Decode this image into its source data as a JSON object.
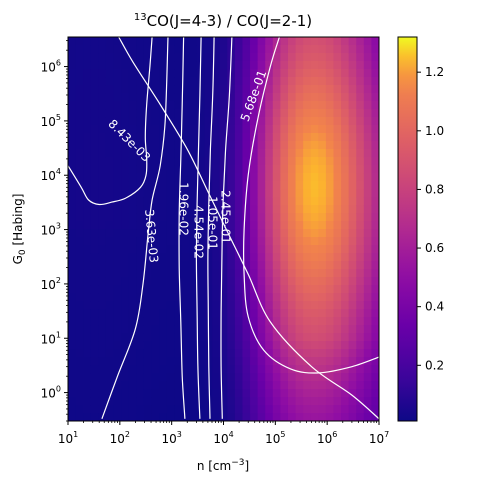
{
  "chart_data": {
    "type": "heatmap",
    "title_prefix": "13",
    "title_main": "CO(J=4-3) / CO(J=2-1)",
    "xlabel": "n [cm",
    "xlabel_sup": "−3",
    "xlabel_end": "]",
    "ylabel_main": "G",
    "ylabel_sub": "0",
    "ylabel_end": " [Habing]",
    "x_scale": "log",
    "y_scale": "log",
    "xlim": [
      10,
      10000000
    ],
    "ylim": [
      0.3,
      3500000
    ],
    "x_ticks": [
      {
        "value": 10,
        "base": "10",
        "exp": "1"
      },
      {
        "value": 100,
        "base": "10",
        "exp": "2"
      },
      {
        "value": 1000,
        "base": "10",
        "exp": "3"
      },
      {
        "value": 10000,
        "base": "10",
        "exp": "4"
      },
      {
        "value": 100000,
        "base": "10",
        "exp": "5"
      },
      {
        "value": 1000000,
        "base": "10",
        "exp": "6"
      },
      {
        "value": 10000000,
        "base": "10",
        "exp": "7"
      }
    ],
    "y_ticks": [
      {
        "value": 1,
        "base": "10",
        "exp": "0"
      },
      {
        "value": 10,
        "base": "10",
        "exp": "1"
      },
      {
        "value": 100,
        "base": "10",
        "exp": "2"
      },
      {
        "value": 1000,
        "base": "10",
        "exp": "3"
      },
      {
        "value": 10000,
        "base": "10",
        "exp": "4"
      },
      {
        "value": 100000,
        "base": "10",
        "exp": "5"
      },
      {
        "value": 1000000,
        "base": "10",
        "exp": "6"
      }
    ],
    "colormap": "plasma",
    "colorbar": {
      "vmin": 0.01,
      "vmax": 1.32,
      "ticks": [
        {
          "value": 0.2,
          "label": "0.2"
        },
        {
          "value": 0.4,
          "label": "0.4"
        },
        {
          "value": 0.6,
          "label": "0.6"
        },
        {
          "value": 0.8,
          "label": "0.8"
        },
        {
          "value": 1.0,
          "label": "1.0"
        },
        {
          "value": 1.2,
          "label": "1.2"
        }
      ]
    },
    "contours": [
      {
        "level": 0.00843,
        "label": "8.43e-03",
        "points": [
          [
            10000000.0,
            0.33
          ],
          [
            3000000.0,
            0.9
          ],
          [
            500000.0,
            3.0
          ],
          [
            80000.0,
            20.0
          ],
          [
            30000.0,
            150.0
          ],
          [
            12000.0,
            900.0
          ],
          [
            5000.0,
            5000.0
          ],
          [
            2000.0,
            30000.0
          ],
          [
            600,
            200000.0
          ],
          [
            180,
            1200000.0
          ],
          [
            95,
            3500000.0
          ]
        ]
      },
      {
        "level": 0.00843,
        "label": "8.43e-03",
        "points": [
          [
            10,
            15000.0
          ],
          [
            18,
            6000.0
          ],
          [
            25,
            3500.0
          ],
          [
            40,
            2900.0
          ],
          [
            70,
            3200.0
          ],
          [
            130,
            3800.0
          ],
          [
            250,
            6000.0
          ],
          [
            320,
            10000.0
          ],
          [
            330,
            20000.0
          ],
          [
            310,
            50000.0
          ],
          [
            330,
            200000.0
          ],
          [
            380,
            1000000.0
          ],
          [
            420,
            3500000.0
          ]
        ]
      },
      {
        "level": 0.00363,
        "label": "3.63e-03",
        "points": [
          [
            45,
            0.33
          ],
          [
            90,
            2.0
          ],
          [
            200,
            15.0
          ],
          [
            280,
            100.0
          ],
          [
            350,
            800.0
          ],
          [
            420,
            3500.0
          ],
          [
            600,
            15000.0
          ],
          [
            750,
            100000.0
          ],
          [
            850,
            3500000.0
          ]
        ]
      },
      {
        "level": 0.0196,
        "label": "1.96e-02",
        "points": [
          [
            1800,
            0.33
          ],
          [
            1600,
            2.0
          ],
          [
            1500,
            20.0
          ],
          [
            1400,
            200.0
          ],
          [
            1400,
            2000.0
          ],
          [
            1500,
            20000.0
          ],
          [
            1600,
            200000.0
          ],
          [
            1700,
            3500000.0
          ]
        ]
      },
      {
        "level": 0.0454,
        "label": "4.54e-02",
        "points": [
          [
            3500,
            0.33
          ],
          [
            3200,
            3.0
          ],
          [
            3100,
            30.0
          ],
          [
            3000,
            300.0
          ],
          [
            3100,
            3000.0
          ],
          [
            3300,
            30000.0
          ],
          [
            3500,
            300000.0
          ],
          [
            3700,
            3500000.0
          ]
        ]
      },
      {
        "level": 0.105,
        "label": "1.05e-01",
        "points": [
          [
            5500,
            0.33
          ],
          [
            5200,
            3.0
          ],
          [
            5100,
            30.0
          ],
          [
            5000,
            300.0
          ],
          [
            5200,
            3000.0
          ],
          [
            5600,
            30000.0
          ],
          [
            6200,
            300000.0
          ],
          [
            6600,
            3500000.0
          ]
        ]
      },
      {
        "level": 0.245,
        "label": "2.45e-01",
        "points": [
          [
            9500,
            0.33
          ],
          [
            9000,
            3.0
          ],
          [
            9000,
            30.0
          ],
          [
            9300,
            300.0
          ],
          [
            9800,
            3000.0
          ],
          [
            11000,
            30000.0
          ],
          [
            13000,
            300000.0
          ],
          [
            14500,
            3500000.0
          ]
        ]
      },
      {
        "level": 0.568,
        "label": "5.68e-01",
        "points": [
          [
            10000000,
            4.5
          ],
          [
            3000000,
            3.0
          ],
          [
            700000,
            2.3
          ],
          [
            200000,
            2.7
          ],
          [
            60000,
            6.0
          ],
          [
            30000,
            25.0
          ],
          [
            25000,
            150.0
          ],
          [
            25000,
            1000.0
          ],
          [
            30000,
            10000.0
          ],
          [
            45000,
            100000.0
          ],
          [
            80000,
            1000000.0
          ],
          [
            120000,
            3500000.0
          ]
        ]
      }
    ]
  }
}
